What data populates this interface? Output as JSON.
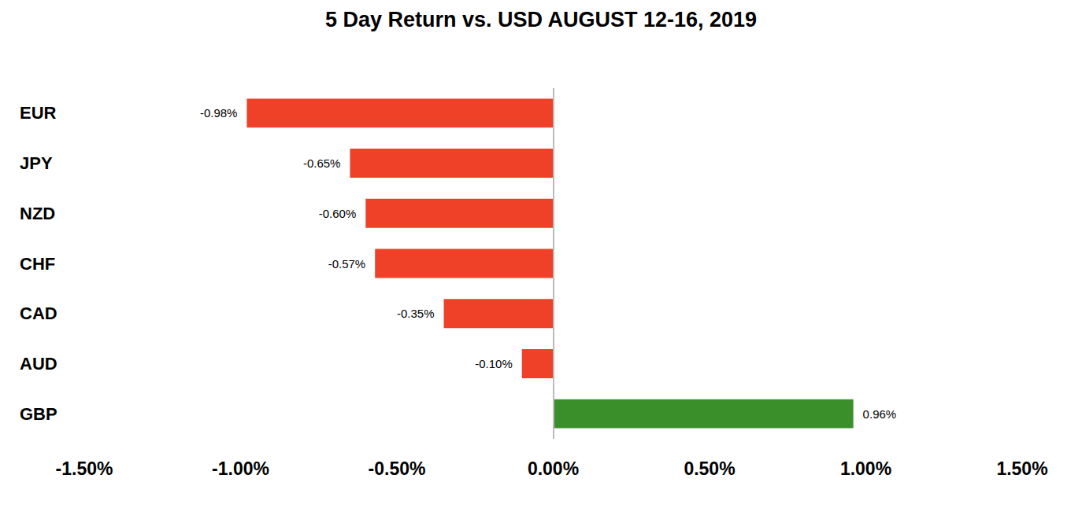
{
  "chart_data": {
    "type": "bar",
    "title": "5 Day Return vs. USD AUGUST 12-16, 2019",
    "orientation": "horizontal",
    "categories": [
      "EUR",
      "JPY",
      "NZD",
      "CHF",
      "CAD",
      "AUD",
      "GBP"
    ],
    "values": [
      -0.98,
      -0.65,
      -0.6,
      -0.57,
      -0.35,
      -0.1,
      0.96
    ],
    "value_labels": [
      "-0.98%",
      "-0.65%",
      "-0.60%",
      "-0.57%",
      "-0.35%",
      "-0.10%",
      "0.96%"
    ],
    "colors": [
      "#ee4128",
      "#ee4128",
      "#ee4128",
      "#ee4128",
      "#ee4128",
      "#ee4128",
      "#3a8f2a"
    ],
    "xlim": [
      -1.5,
      1.5
    ],
    "xticks": [
      {
        "value": -1.5,
        "label": "-1.50%"
      },
      {
        "value": -1.0,
        "label": "-1.00%"
      },
      {
        "value": -0.5,
        "label": "-0.50%"
      },
      {
        "value": 0,
        "label": "0.00%"
      },
      {
        "value": 0.5,
        "label": "0.50%"
      },
      {
        "value": 1.0,
        "label": "1.00%"
      },
      {
        "value": 1.5,
        "label": "1.50%"
      }
    ],
    "grid": false,
    "data_labels": true
  }
}
